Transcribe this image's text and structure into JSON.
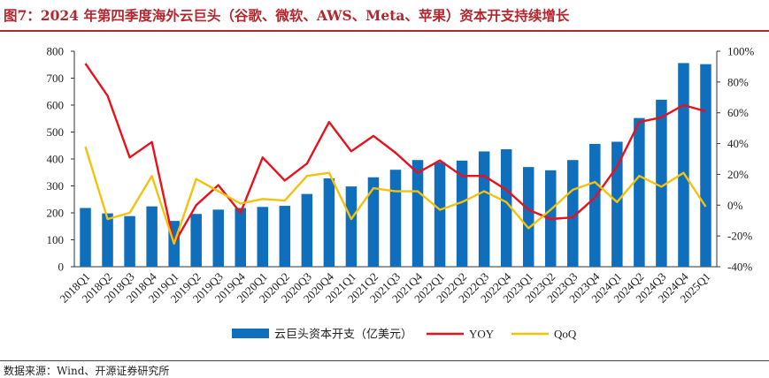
{
  "header": {
    "title": "图7：2024 年第四季度海外云巨头（谷歌、微软、AWS、Meta、苹果）资本开支持续增长"
  },
  "footer": {
    "source": "数据来源：Wind、开源证券研究所"
  },
  "chart_data": {
    "type": "bar",
    "title": "",
    "categories": [
      "2018Q1",
      "2018Q2",
      "2018Q3",
      "2018Q4",
      "2019Q1",
      "2019Q2",
      "2019Q3",
      "2019Q4",
      "2020Q1",
      "2020Q2",
      "2020Q3",
      "2020Q4",
      "2021Q1",
      "2021Q2",
      "2021Q3",
      "2021Q4",
      "2022Q1",
      "2022Q2",
      "2022Q3",
      "2022Q4",
      "2023Q1",
      "2023Q2",
      "2023Q3",
      "2023Q4",
      "2024Q1",
      "2024Q2",
      "2024Q3",
      "2024Q4",
      "2025Q1"
    ],
    "series": [
      {
        "name": "云巨头资本开支（亿美元）",
        "type": "bar",
        "axis": "left",
        "color": "#0f6fbd",
        "values": [
          218,
          198,
          188,
          224,
          170,
          196,
          212,
          218,
          222,
          226,
          270,
          328,
          298,
          332,
          360,
          396,
          388,
          394,
          428,
          436,
          370,
          358,
          396,
          456,
          464,
          552,
          620,
          756,
          752
        ]
      },
      {
        "name": "YOY",
        "type": "line",
        "axis": "right",
        "color": "#e8111c",
        "values": [
          92,
          71,
          31,
          41,
          -25,
          0,
          13,
          -5,
          31,
          16,
          27,
          54,
          35,
          45,
          34,
          21,
          29,
          19,
          19,
          10,
          -3,
          -9,
          -8,
          5,
          25,
          54,
          57,
          65,
          61
        ]
      },
      {
        "name": "QoQ",
        "type": "line",
        "axis": "right",
        "color": "#f4c20d",
        "values": [
          38,
          -9,
          -5,
          19,
          -25,
          17,
          9,
          1,
          4,
          3,
          19,
          21,
          -9,
          11,
          9,
          9,
          -3,
          2,
          9,
          2,
          -15,
          -3,
          10,
          15,
          2,
          19,
          12,
          21,
          -1
        ]
      }
    ],
    "y_left": {
      "min": 0,
      "max": 800,
      "step": 100,
      "ticks": [
        "0",
        "100",
        "200",
        "300",
        "400",
        "500",
        "600",
        "700",
        "800"
      ]
    },
    "y_right": {
      "min": -40,
      "max": 100,
      "step": 20,
      "ticks": [
        "-40%",
        "-20%",
        "0%",
        "20%",
        "40%",
        "60%",
        "80%",
        "100%"
      ]
    },
    "legend_position": "bottom-center",
    "grid": false
  }
}
